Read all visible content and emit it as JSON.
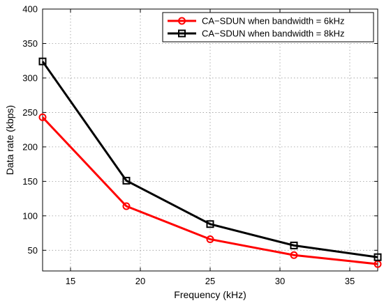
{
  "chart_data": {
    "type": "line",
    "title": "",
    "xlabel": "Frequency (kHz)",
    "ylabel": "Data rate (kbps)",
    "xlim": [
      13,
      37
    ],
    "ylim": [
      20,
      400
    ],
    "xticks": [
      15,
      20,
      25,
      30,
      35
    ],
    "yticks": [
      50,
      100,
      150,
      200,
      250,
      300,
      350,
      400
    ],
    "grid": true,
    "legend_position": "top-right",
    "x": [
      13,
      19,
      25,
      31,
      37
    ],
    "series": [
      {
        "name": "CA−SDUN when bandwidth = 6kHz",
        "values": [
          243,
          114,
          66,
          43,
          30
        ],
        "color": "#ff0000",
        "marker": "circle"
      },
      {
        "name": "CA−SDUN when bandwidth = 8kHz",
        "values": [
          324,
          151,
          88,
          57,
          40
        ],
        "color": "#000000",
        "marker": "square"
      }
    ]
  }
}
